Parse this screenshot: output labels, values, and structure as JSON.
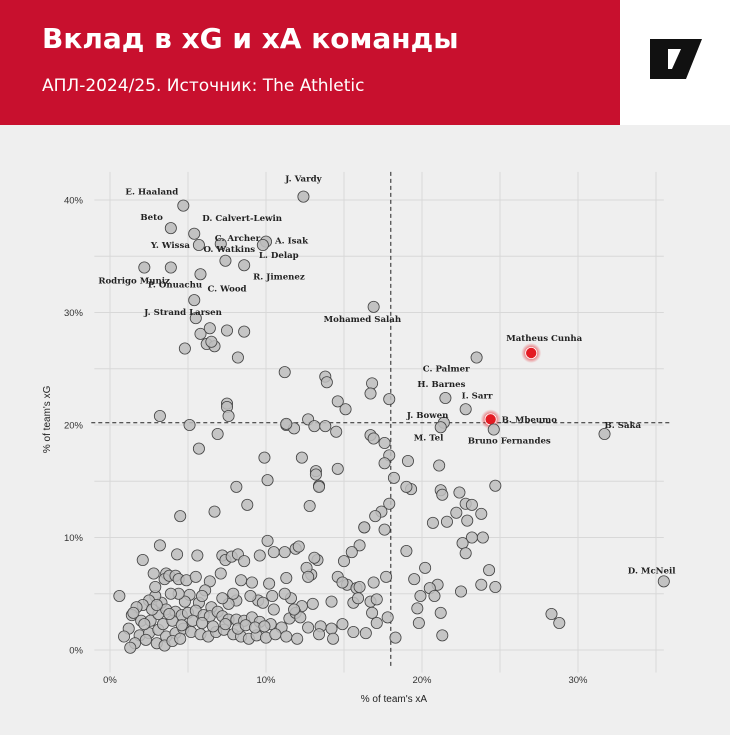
{
  "header": {
    "title": "Вклад в xG и xA команды",
    "subtitle": "АПЛ-2024/25. Источник: The Athletic"
  },
  "logo": {
    "icon": "the-athletic-logo-icon"
  },
  "colors": {
    "header_bg": "#c8102e",
    "point_fill": "#bdbdbd",
    "point_stroke": "#444444",
    "highlight": "#e31b23",
    "background": "#efefef"
  },
  "chart_data": {
    "type": "scatter",
    "title": "",
    "xlabel": "% of team's xA",
    "ylabel": "% of team's xG",
    "xlim": [
      0,
      34
    ],
    "ylim": [
      0,
      42
    ],
    "x_ticks": [
      "0%",
      "10%",
      "20%",
      "30%"
    ],
    "y_ticks": [
      "0%",
      "10%",
      "20%",
      "30%",
      "40%"
    ],
    "grid": true,
    "reference_lines": {
      "x": 18,
      "y": 20.2
    },
    "labeled_points": [
      {
        "name": "E. Haaland",
        "x": 4.7,
        "y": 39.5
      },
      {
        "name": "J. Vardy",
        "x": 12.4,
        "y": 40.3
      },
      {
        "name": "Beto",
        "x": 3.9,
        "y": 37.5
      },
      {
        "name": "D. Calvert-Lewin",
        "x": 5.4,
        "y": 37.0
      },
      {
        "name": "C. Archer",
        "x": 7.1,
        "y": 36.1
      },
      {
        "name": "A. Isak",
        "x": 10.0,
        "y": 36.3
      },
      {
        "name": "Y. Wissa",
        "x": 5.7,
        "y": 36.0
      },
      {
        "name": "O. Watkins",
        "x": 7.4,
        "y": 34.6
      },
      {
        "name": "L. Delap",
        "x": 9.8,
        "y": 36.0
      },
      {
        "name": "Rodrigo Muniz",
        "x": 2.2,
        "y": 34.0
      },
      {
        "name": "P. Onuachu",
        "x": 3.9,
        "y": 34.0
      },
      {
        "name": "C. Wood",
        "x": 5.8,
        "y": 33.4
      },
      {
        "name": "R. Jimenez",
        "x": 8.6,
        "y": 34.2
      },
      {
        "name": "J. Strand Larsen",
        "x": 5.4,
        "y": 31.1
      },
      {
        "name": "Mohamed Salah",
        "x": 16.9,
        "y": 30.5
      },
      {
        "name": "Matheus Cunha",
        "x": 27.0,
        "y": 26.4,
        "highlight": true
      },
      {
        "name": "C. Palmer",
        "x": 23.5,
        "y": 26.0
      },
      {
        "name": "H. Barnes",
        "x": 21.5,
        "y": 22.4
      },
      {
        "name": "I. Sarr",
        "x": 22.8,
        "y": 21.4
      },
      {
        "name": "J. Bowen",
        "x": 21.4,
        "y": 20.2
      },
      {
        "name": "B. Mbeumo",
        "x": 24.4,
        "y": 20.5,
        "highlight": true
      },
      {
        "name": "B. Saka",
        "x": 31.7,
        "y": 19.2
      },
      {
        "name": "M. Tel",
        "x": 21.2,
        "y": 19.8
      },
      {
        "name": "Bruno Fernandes",
        "x": 24.6,
        "y": 19.6
      },
      {
        "name": "D. McNeil",
        "x": 35.5,
        "y": 6.1
      }
    ],
    "other_points": [
      [
        5.5,
        29.5
      ],
      [
        5.8,
        28.1
      ],
      [
        6.4,
        28.6
      ],
      [
        7.5,
        28.4
      ],
      [
        8.6,
        28.3
      ],
      [
        6.2,
        27.2
      ],
      [
        6.7,
        27.0
      ],
      [
        4.8,
        26.8
      ],
      [
        8.2,
        26.0
      ],
      [
        6.5,
        27.4
      ],
      [
        11.2,
        24.7
      ],
      [
        13.8,
        24.3
      ],
      [
        13.9,
        23.8
      ],
      [
        16.8,
        23.7
      ],
      [
        16.7,
        22.8
      ],
      [
        17.9,
        22.3
      ],
      [
        14.6,
        22.1
      ],
      [
        7.5,
        21.9
      ],
      [
        15.1,
        21.4
      ],
      [
        7.5,
        21.6
      ],
      [
        7.6,
        20.8
      ],
      [
        12.7,
        20.5
      ],
      [
        3.2,
        20.8
      ],
      [
        5.1,
        20.0
      ],
      [
        11.3,
        20.0
      ],
      [
        13.1,
        19.9
      ],
      [
        13.8,
        19.9
      ],
      [
        14.5,
        19.4
      ],
      [
        11.8,
        19.7
      ],
      [
        16.7,
        19.1
      ],
      [
        6.9,
        19.2
      ],
      [
        5.7,
        17.9
      ],
      [
        16.9,
        18.8
      ],
      [
        17.6,
        18.4
      ],
      [
        17.9,
        17.3
      ],
      [
        9.9,
        17.1
      ],
      [
        12.3,
        17.1
      ],
      [
        17.6,
        16.6
      ],
      [
        14.6,
        16.1
      ],
      [
        18.2,
        15.3
      ],
      [
        10.1,
        15.1
      ],
      [
        13.2,
        15.9
      ],
      [
        13.2,
        15.6
      ],
      [
        13.4,
        14.6
      ],
      [
        13.4,
        14.5
      ],
      [
        12.8,
        12.8
      ],
      [
        17.9,
        13.0
      ],
      [
        21.1,
        16.4
      ],
      [
        21.2,
        14.2
      ],
      [
        21.3,
        13.8
      ],
      [
        22.4,
        14.0
      ],
      [
        22.8,
        13.0
      ],
      [
        23.2,
        12.9
      ],
      [
        24.7,
        14.6
      ],
      [
        22.2,
        12.2
      ],
      [
        23.8,
        12.1
      ],
      [
        20.7,
        11.3
      ],
      [
        21.6,
        11.4
      ],
      [
        22.9,
        11.5
      ],
      [
        23.2,
        10.0
      ],
      [
        23.9,
        10.0
      ],
      [
        19.3,
        14.3
      ],
      [
        19.0,
        14.5
      ],
      [
        19.1,
        16.8
      ],
      [
        8.1,
        14.5
      ],
      [
        4.5,
        11.9
      ],
      [
        6.7,
        12.3
      ],
      [
        8.8,
        12.9
      ],
      [
        11.3,
        20.1
      ],
      [
        17.4,
        12.3
      ],
      [
        17.0,
        11.9
      ],
      [
        17.6,
        10.7
      ],
      [
        16.3,
        10.9
      ],
      [
        16.3,
        10.9
      ],
      [
        16.0,
        9.3
      ],
      [
        11.9,
        9.0
      ],
      [
        13.3,
        8.0
      ],
      [
        13.1,
        8.2
      ],
      [
        15.5,
        8.7
      ],
      [
        15.0,
        7.9
      ],
      [
        19.0,
        8.8
      ],
      [
        20.2,
        7.3
      ],
      [
        22.6,
        9.5
      ],
      [
        22.8,
        8.6
      ],
      [
        21.0,
        5.8
      ],
      [
        20.5,
        5.5
      ],
      [
        22.5,
        5.2
      ],
      [
        24.3,
        7.1
      ],
      [
        23.8,
        5.8
      ],
      [
        24.7,
        5.6
      ],
      [
        20.8,
        4.8
      ],
      [
        19.5,
        6.3
      ],
      [
        17.7,
        6.5
      ],
      [
        19.9,
        4.8
      ],
      [
        19.7,
        3.7
      ],
      [
        17.8,
        2.9
      ],
      [
        19.8,
        2.4
      ],
      [
        21.2,
        3.3
      ],
      [
        21.3,
        1.3
      ],
      [
        28.3,
        3.2
      ],
      [
        28.8,
        2.4
      ],
      [
        18.3,
        1.1
      ],
      [
        2.1,
        8.0
      ],
      [
        4.3,
        8.5
      ],
      [
        5.6,
        8.4
      ],
      [
        7.2,
        8.4
      ],
      [
        7.4,
        8.0
      ],
      [
        7.8,
        8.3
      ],
      [
        8.2,
        8.5
      ],
      [
        8.6,
        7.9
      ],
      [
        9.6,
        8.4
      ],
      [
        10.1,
        9.7
      ],
      [
        10.5,
        8.7
      ],
      [
        11.2,
        8.7
      ],
      [
        12.1,
        9.2
      ],
      [
        3.2,
        9.3
      ],
      [
        2.8,
        6.8
      ],
      [
        3.6,
        6.8
      ],
      [
        3.5,
        6.3
      ],
      [
        3.8,
        6.6
      ],
      [
        4.2,
        6.6
      ],
      [
        4.4,
        6.3
      ],
      [
        4.9,
        6.2
      ],
      [
        5.5,
        6.5
      ],
      [
        6.4,
        6.1
      ],
      [
        7.1,
        6.8
      ],
      [
        8.4,
        6.2
      ],
      [
        9.1,
        6.0
      ],
      [
        10.2,
        5.9
      ],
      [
        11.3,
        6.4
      ],
      [
        12.9,
        6.7
      ],
      [
        14.6,
        6.5
      ],
      [
        15.2,
        5.8
      ],
      [
        15.8,
        5.5
      ],
      [
        16.0,
        5.6
      ],
      [
        16.9,
        6.0
      ],
      [
        14.9,
        6.0
      ],
      [
        15.6,
        4.2
      ],
      [
        15.9,
        4.6
      ],
      [
        16.7,
        4.3
      ],
      [
        17.1,
        4.5
      ],
      [
        14.2,
        4.3
      ],
      [
        13.0,
        4.1
      ],
      [
        12.3,
        3.9
      ],
      [
        11.6,
        4.6
      ],
      [
        11.2,
        5.0
      ],
      [
        10.4,
        4.8
      ],
      [
        9.5,
        4.4
      ],
      [
        9.0,
        4.8
      ],
      [
        8.1,
        4.4
      ],
      [
        7.6,
        4.1
      ],
      [
        7.2,
        4.6
      ],
      [
        6.5,
        3.8
      ],
      [
        5.7,
        4.2
      ],
      [
        5.1,
        4.9
      ],
      [
        4.8,
        4.3
      ],
      [
        4.4,
        5.0
      ],
      [
        3.9,
        5.0
      ],
      [
        3.3,
        4.2
      ],
      [
        2.9,
        4.8
      ],
      [
        2.5,
        4.4
      ],
      [
        2.1,
        4.0
      ],
      [
        1.7,
        3.8
      ],
      [
        1.4,
        3.1
      ],
      [
        2.0,
        2.6
      ],
      [
        2.6,
        2.6
      ],
      [
        3.1,
        3.2
      ],
      [
        3.6,
        3.6
      ],
      [
        4.2,
        3.4
      ],
      [
        4.6,
        3.1
      ],
      [
        5.0,
        3.3
      ],
      [
        5.5,
        3.5
      ],
      [
        6.0,
        3.1
      ],
      [
        6.4,
        3.0
      ],
      [
        6.9,
        3.4
      ],
      [
        7.2,
        3.0
      ],
      [
        7.6,
        2.7
      ],
      [
        8.1,
        2.7
      ],
      [
        8.6,
        2.6
      ],
      [
        9.1,
        2.9
      ],
      [
        9.6,
        2.5
      ],
      [
        10.3,
        2.3
      ],
      [
        11.0,
        2.0
      ],
      [
        11.5,
        2.8
      ],
      [
        11.9,
        3.3
      ],
      [
        12.2,
        2.9
      ],
      [
        12.7,
        2.0
      ],
      [
        13.5,
        2.1
      ],
      [
        14.2,
        1.9
      ],
      [
        14.9,
        2.3
      ],
      [
        15.6,
        1.6
      ],
      [
        16.4,
        1.5
      ],
      [
        17.1,
        2.4
      ],
      [
        16.8,
        3.3
      ],
      [
        1.2,
        1.9
      ],
      [
        1.9,
        1.3
      ],
      [
        2.5,
        1.5
      ],
      [
        3.1,
        1.8
      ],
      [
        3.6,
        1.2
      ],
      [
        4.2,
        1.5
      ],
      [
        4.7,
        1.9
      ],
      [
        5.2,
        1.6
      ],
      [
        5.8,
        1.4
      ],
      [
        6.3,
        1.2
      ],
      [
        6.8,
        1.6
      ],
      [
        7.3,
        1.8
      ],
      [
        7.9,
        1.4
      ],
      [
        8.4,
        1.2
      ],
      [
        8.9,
        1.0
      ],
      [
        9.4,
        1.3
      ],
      [
        10.0,
        1.1
      ],
      [
        10.6,
        1.4
      ],
      [
        11.3,
        1.2
      ],
      [
        12.0,
        1.0
      ],
      [
        13.4,
        1.4
      ],
      [
        14.3,
        1.0
      ],
      [
        0.9,
        1.2
      ],
      [
        1.6,
        0.6
      ],
      [
        2.3,
        0.9
      ],
      [
        3.0,
        0.6
      ],
      [
        3.5,
        0.4
      ],
      [
        4.0,
        0.8
      ],
      [
        4.5,
        1.0
      ],
      [
        1.3,
        0.2
      ],
      [
        0.6,
        4.8
      ],
      [
        1.5,
        3.3
      ],
      [
        2.2,
        2.3
      ],
      [
        2.7,
        3.6
      ],
      [
        3.4,
        2.3
      ],
      [
        4.0,
        2.6
      ],
      [
        4.6,
        2.2
      ],
      [
        5.3,
        2.6
      ],
      [
        5.9,
        2.4
      ],
      [
        6.6,
        2.1
      ],
      [
        7.4,
        2.3
      ],
      [
        8.2,
        1.9
      ],
      [
        8.7,
        2.2
      ],
      [
        9.3,
        2.0
      ],
      [
        9.9,
        2.1
      ],
      [
        12.6,
        7.3
      ],
      [
        12.7,
        6.5
      ],
      [
        3.0,
        4.0
      ],
      [
        3.8,
        3.2
      ],
      [
        6.1,
        5.3
      ],
      [
        7.9,
        5.0
      ],
      [
        9.8,
        4.2
      ],
      [
        10.5,
        3.6
      ],
      [
        11.8,
        3.6
      ],
      [
        2.9,
        5.6
      ],
      [
        5.9,
        4.8
      ]
    ]
  }
}
